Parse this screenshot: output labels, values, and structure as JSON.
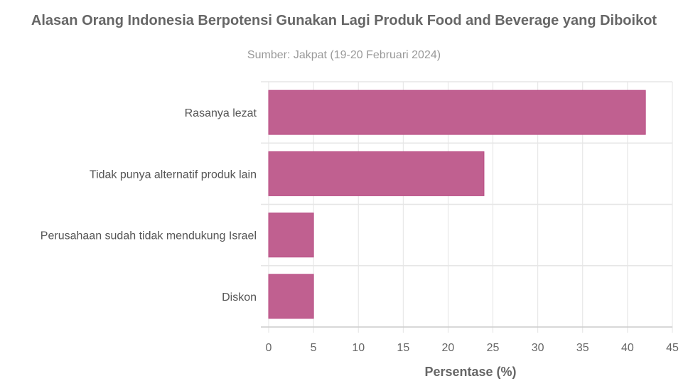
{
  "chart_data": {
    "type": "bar",
    "orientation": "horizontal",
    "title": "Alasan Orang Indonesia Berpotensi Gunakan Lagi Produk Food and Beverage yang Diboikot",
    "subtitle": "Sumber: Jakpat (19-20 Februari 2024)",
    "categories": [
      "Rasanya lezat",
      "Tidak punya alternatif produk lain",
      "Perusahaan sudah tidak mendukung Israel",
      "Diskon"
    ],
    "values": [
      42,
      24,
      5,
      5
    ],
    "xlabel": "Persentase (%)",
    "ylabel": "",
    "xlim": [
      0,
      45
    ],
    "xticks": [
      0,
      5,
      10,
      15,
      20,
      25,
      30,
      35,
      40,
      45
    ],
    "grid": true,
    "bar_color": "#c06090",
    "bar_border_color": "#b84a82"
  }
}
